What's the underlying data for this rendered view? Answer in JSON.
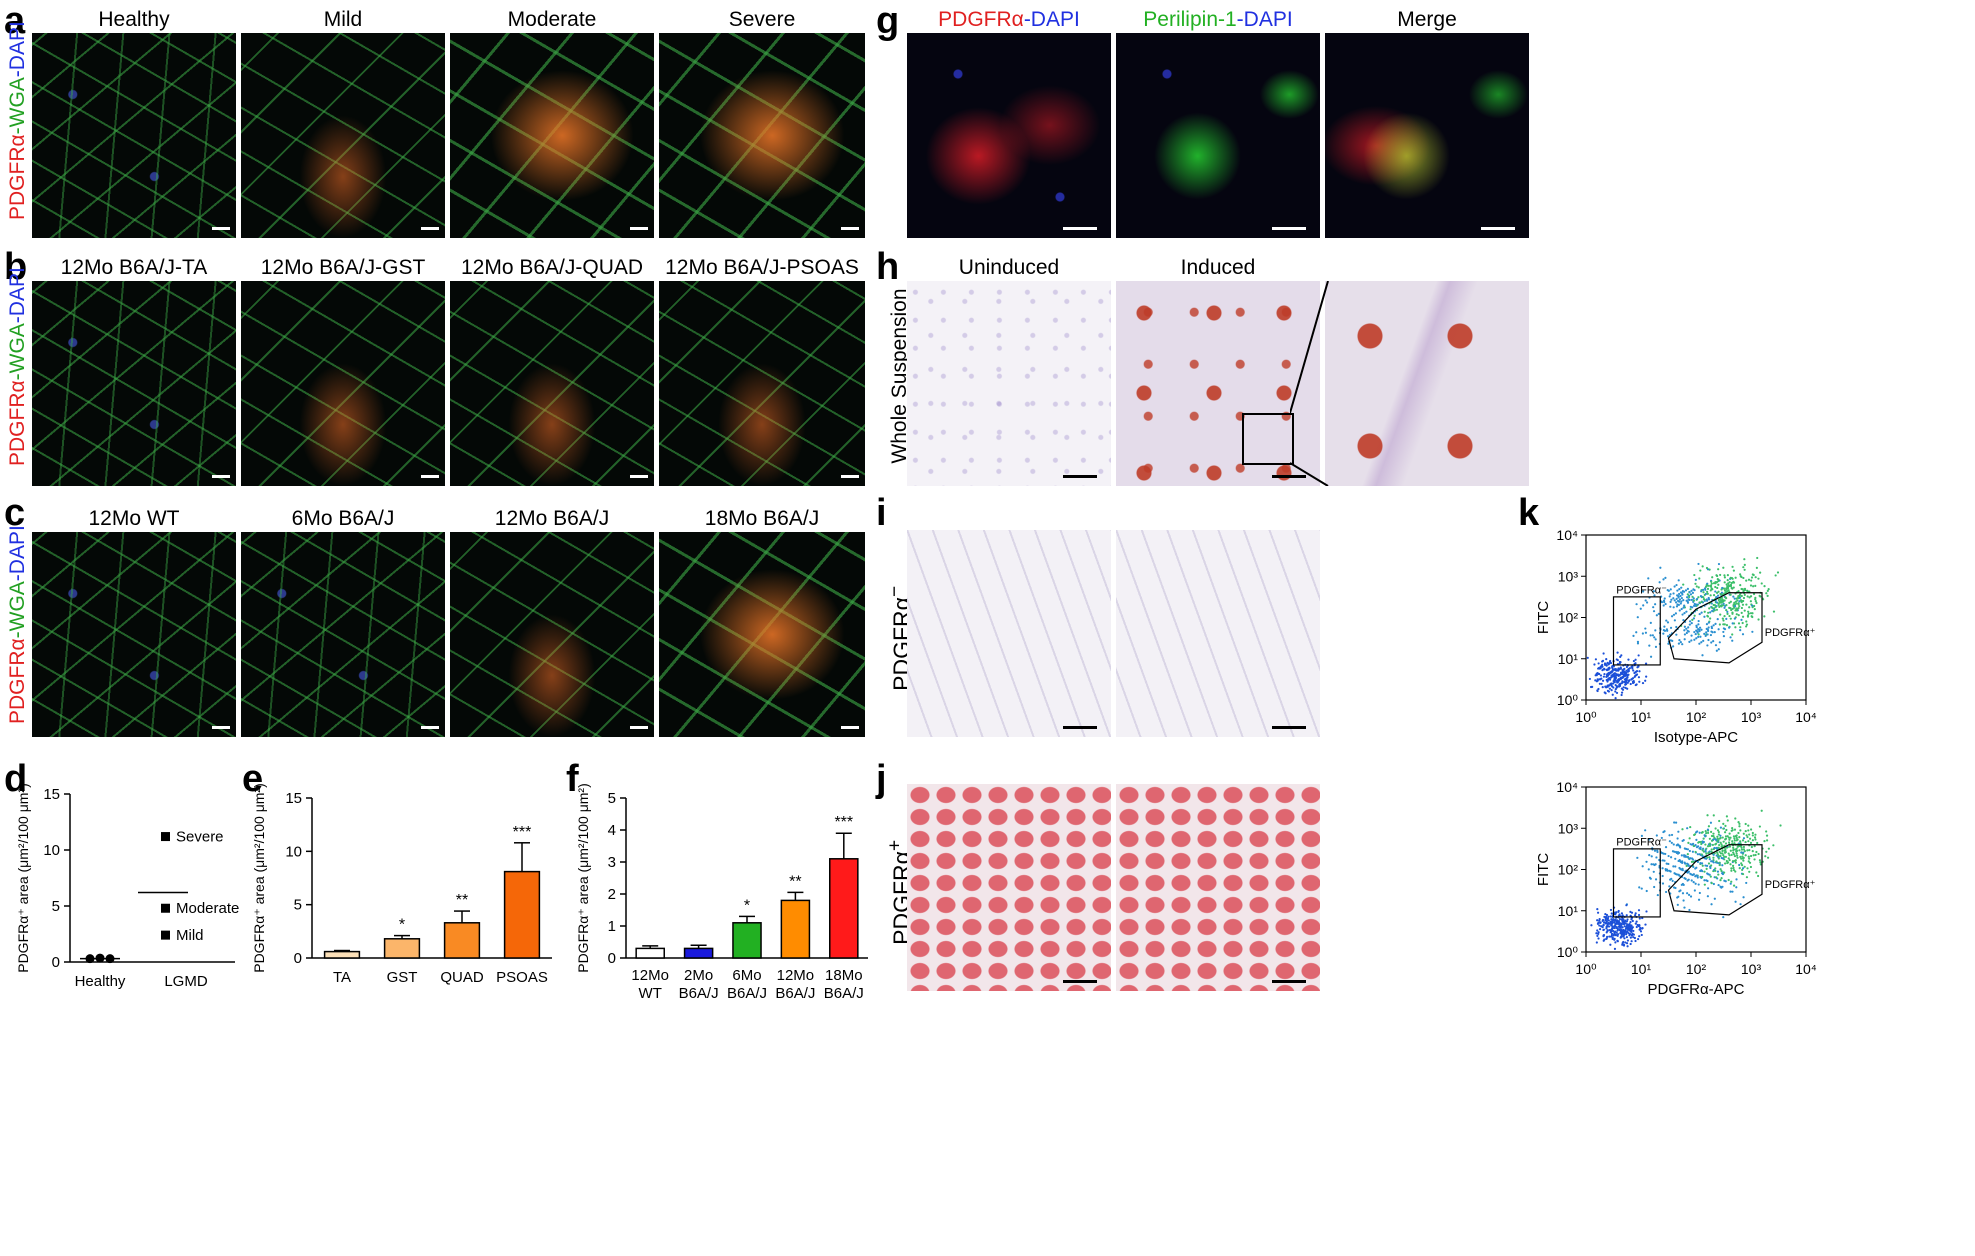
{
  "panels": {
    "a": {
      "label": "a",
      "side": "PDGFRα-WGA-DAPI",
      "titles": [
        "Healthy",
        "Mild",
        "Moderate",
        "Severe"
      ]
    },
    "b": {
      "label": "b",
      "side": "PDGFRα-WGA-DAPI",
      "titles": [
        "12Mo B6A/J-TA",
        "12Mo B6A/J-GST",
        "12Mo B6A/J-QUAD",
        "12Mo B6A/J-PSOAS"
      ]
    },
    "c": {
      "label": "c",
      "side": "PDGFRα-WGA-DAPI",
      "titles": [
        "12Mo WT",
        "6Mo B6A/J",
        "12Mo B6A/J",
        "18Mo B6A/J"
      ]
    },
    "g": {
      "label": "g",
      "titles": [
        "PDGFRα-DAPI",
        "Perilipin-1-DAPI",
        "Merge"
      ]
    },
    "h": {
      "label": "h",
      "side": "Whole Suspension",
      "titles": [
        "Uninduced",
        "Induced"
      ]
    },
    "i": {
      "label": "i",
      "side": "PDGFRα⁻"
    },
    "j": {
      "label": "j",
      "side": "PDGFRα⁺"
    },
    "k": {
      "label": "k"
    }
  },
  "chart_data": [
    {
      "id": "d",
      "type": "scatter",
      "title": "",
      "ylabel": "PDGFRα⁺ area (μm²/100 μm²)",
      "ylim": [
        0,
        15
      ],
      "yticks": [
        "0",
        "5",
        "10",
        "15"
      ],
      "categories": [
        "Healthy",
        "LGMD"
      ],
      "points": [
        {
          "x": "Healthy",
          "y": 0.3
        },
        {
          "x": "Healthy",
          "y": 0.35
        },
        {
          "x": "Healthy",
          "y": 0.3
        },
        {
          "x": "LGMD",
          "y": 11.2,
          "label": "Severe"
        },
        {
          "x": "LGMD",
          "y": 4.8,
          "label": "Moderate"
        },
        {
          "x": "LGMD",
          "y": 2.4,
          "label": "Mild"
        }
      ],
      "means": {
        "Healthy": 0.3,
        "LGMD": 6.2
      }
    },
    {
      "id": "e",
      "type": "bar",
      "title": "",
      "ylabel": "PDGFRα⁺ area (μm²/100 μm²)",
      "ylim": [
        0,
        15
      ],
      "yticks": [
        "0",
        "5",
        "10",
        "15"
      ],
      "categories": [
        "TA",
        "GST",
        "QUAD",
        "PSOAS"
      ],
      "values": [
        0.6,
        1.8,
        3.3,
        8.1
      ],
      "errors": [
        0.1,
        0.3,
        1.1,
        2.7
      ],
      "significance": [
        "",
        "*",
        "**",
        "***"
      ],
      "colors": [
        "#fce0b8",
        "#fbb56a",
        "#f98a23",
        "#f56708"
      ]
    },
    {
      "id": "f",
      "type": "bar",
      "title": "",
      "ylabel": "PDGFRα⁺ area (μm²/100 μm²)",
      "ylim": [
        0,
        5
      ],
      "yticks": [
        "0",
        "1",
        "2",
        "3",
        "4",
        "5"
      ],
      "categories": [
        [
          "12Mo",
          "WT"
        ],
        [
          "2Mo",
          "B6A/J"
        ],
        [
          "6Mo",
          "B6A/J"
        ],
        [
          "12Mo",
          "B6A/J"
        ],
        [
          "18Mo",
          "B6A/J"
        ]
      ],
      "values": [
        0.3,
        0.3,
        1.1,
        1.8,
        3.1
      ],
      "errors": [
        0.08,
        0.1,
        0.2,
        0.25,
        0.8
      ],
      "significance": [
        "",
        "",
        "*",
        "**",
        "***"
      ],
      "colors": [
        "#ffffff",
        "#1a1adc",
        "#22b022",
        "#ff8c00",
        "#ff1a1a"
      ]
    },
    {
      "id": "k-top",
      "type": "scatter",
      "xlabel": "Isotype-APC",
      "ylabel": "FITC",
      "xticks": [
        "10⁰",
        "10¹",
        "10²",
        "10³",
        "10⁴"
      ],
      "yticks": [
        "10⁰",
        "10¹",
        "10²",
        "10³",
        "10⁴"
      ],
      "gates": [
        "PDGFRα⁻",
        "PDGFRα⁺"
      ]
    },
    {
      "id": "k-bottom",
      "type": "scatter",
      "xlabel": "PDGFRα-APC",
      "ylabel": "FITC",
      "xticks": [
        "10⁰",
        "10¹",
        "10²",
        "10³",
        "10⁴"
      ],
      "yticks": [
        "10⁰",
        "10¹",
        "10²",
        "10³",
        "10⁴"
      ],
      "gates": [
        "PDGFRα⁻",
        "PDGFRα⁺"
      ]
    }
  ]
}
